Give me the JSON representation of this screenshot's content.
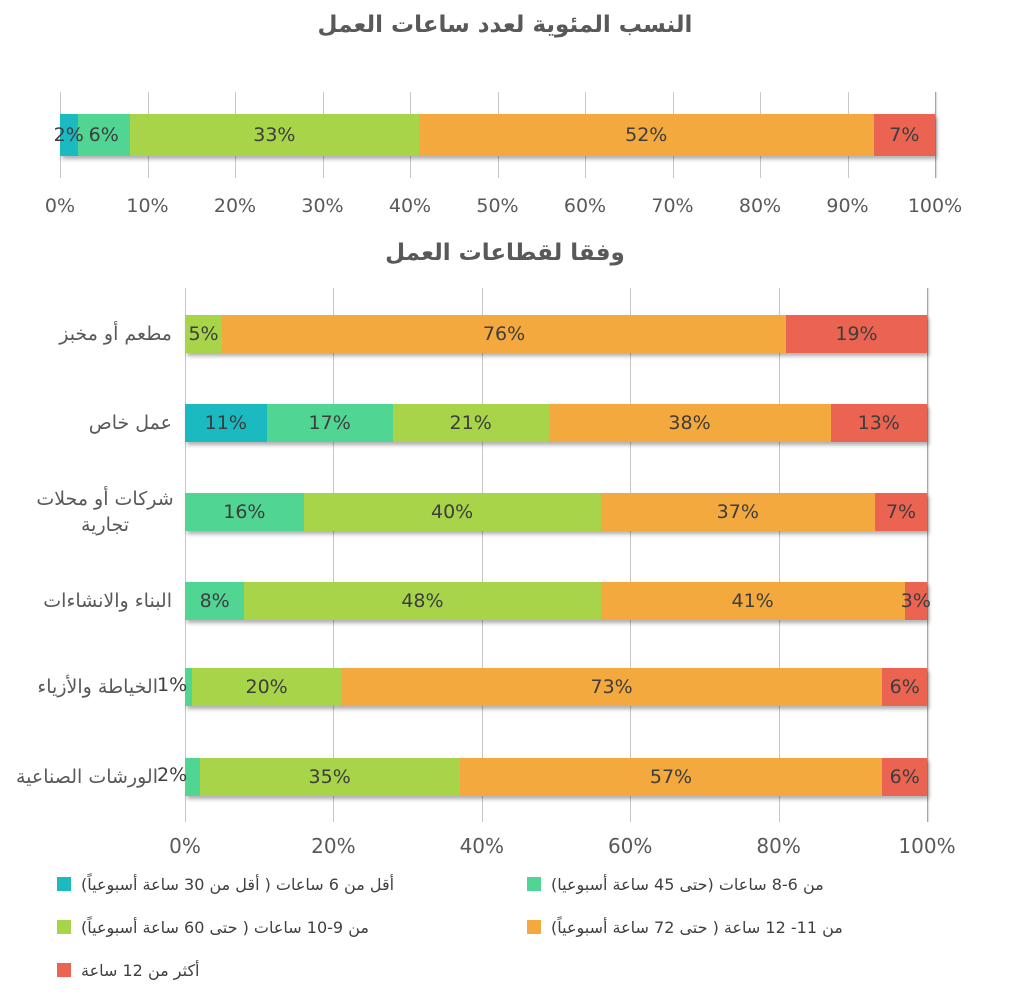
{
  "colors": {
    "teal": "#1BB9C0",
    "mint": "#50D593",
    "yellow_green": "#A8D44A",
    "orange": "#F3A93D",
    "red": "#EB6351",
    "grid": "#C7C7C7",
    "title_text": "#595959",
    "axis_text": "#595959",
    "label_text": "#3D3D3D"
  },
  "chart_data": [
    {
      "type": "bar",
      "orientation": "horizontal-stacked",
      "title": "النسب المئوية لعدد ساعات العمل",
      "categories": [
        ""
      ],
      "xlim": [
        0,
        100
      ],
      "grid": true,
      "x_ticks": [
        "0%",
        "10%",
        "20%",
        "30%",
        "40%",
        "50%",
        "60%",
        "70%",
        "80%",
        "90%",
        "100%"
      ],
      "series": [
        {
          "name": "أقل من 6 ساعات ( أقل من 30 ساعة أسبوعياً)",
          "color_key": "teal",
          "values": [
            2
          ]
        },
        {
          "name": "من 6-8 ساعات (حتى 45 ساعة أسبوعيا)",
          "color_key": "mint",
          "values": [
            6
          ]
        },
        {
          "name": "من 9-10 ساعات ( حتى 60 ساعة أسبوعياً)",
          "color_key": "yellow_green",
          "values": [
            33
          ]
        },
        {
          "name": "من 11- 12 ساعة ( حتى 72 ساعة أسبوعياً)",
          "color_key": "orange",
          "values": [
            52
          ]
        },
        {
          "name": "أكثر من 12 ساعة",
          "color_key": "red",
          "values": [
            7
          ]
        }
      ]
    },
    {
      "type": "bar",
      "orientation": "horizontal-stacked",
      "title": "وفقا لقطاعات العمل",
      "categories": [
        "مطعم أو مخبز",
        "عمل خاص",
        "شركات أو محلات تجارية",
        "البناء والانشاءات",
        "الخياطة والأزياء",
        "الورشات الصناعية"
      ],
      "xlim": [
        0,
        100
      ],
      "grid": true,
      "x_ticks": [
        "0%",
        "20%",
        "40%",
        "60%",
        "80%",
        "100%"
      ],
      "series": [
        {
          "name": "أقل من 6 ساعات ( أقل من 30 ساعة أسبوعياً)",
          "color_key": "teal",
          "values": [
            0,
            11,
            0,
            0,
            0,
            0
          ]
        },
        {
          "name": "من 6-8 ساعات (حتى 45 ساعة أسبوعيا)",
          "color_key": "mint",
          "values": [
            0,
            17,
            16,
            8,
            1,
            2
          ]
        },
        {
          "name": "من 9-10 ساعات ( حتى 60 ساعة أسبوعياً)",
          "color_key": "yellow_green",
          "values": [
            5,
            21,
            40,
            48,
            20,
            35
          ]
        },
        {
          "name": "من 11- 12 ساعة ( حتى 72 ساعة أسبوعياً)",
          "color_key": "orange",
          "values": [
            76,
            38,
            37,
            41,
            73,
            57
          ]
        },
        {
          "name": "أكثر من 12 ساعة",
          "color_key": "red",
          "values": [
            19,
            13,
            7,
            3,
            6,
            6
          ]
        }
      ]
    }
  ],
  "legend": {
    "position": "bottom-left-two-columns",
    "items": [
      {
        "label": "أقل من 6 ساعات ( أقل من 30 ساعة أسبوعياً)",
        "color_key": "teal"
      },
      {
        "label": "من 6-8 ساعات (حتى 45 ساعة أسبوعيا)",
        "color_key": "mint"
      },
      {
        "label": "من 9-10 ساعات ( حتى 60 ساعة أسبوعياً)",
        "color_key": "yellow_green"
      },
      {
        "label": "من 11- 12 ساعة ( حتى 72 ساعة أسبوعياً)",
        "color_key": "orange"
      },
      {
        "label": "أكثر من 12 ساعة",
        "color_key": "red"
      }
    ]
  }
}
